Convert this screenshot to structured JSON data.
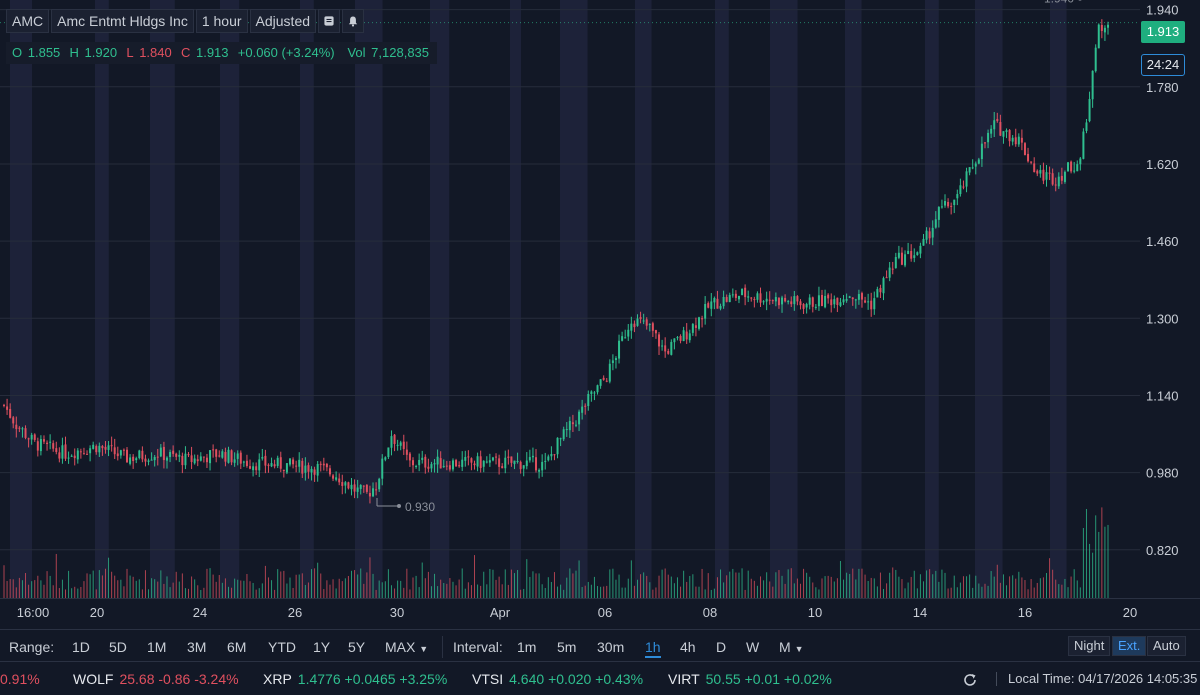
{
  "header": {
    "symbol": "AMC",
    "company": "Amc Entmt Hldgs Inc",
    "interval": "1 hour",
    "adjusted": "Adjusted",
    "notes_icon": "notes-icon",
    "alert_icon": "bell-icon"
  },
  "ohlc": {
    "o_label": "O",
    "o": "1.855",
    "h_label": "H",
    "h": "1.920",
    "l_label": "L",
    "l": "1.840",
    "c_label": "C",
    "c": "1.913",
    "change": "+0.060 (+3.24%)",
    "vol_label": "Vol",
    "vol": "7,128,835"
  },
  "tags": {
    "last_price": "1.913",
    "countdown": "24:24"
  },
  "colors": {
    "up": "#2fbf8f",
    "down": "#e0505f",
    "accent": "#2e8bd8",
    "background": "#121826",
    "session_band": "#1d2239"
  },
  "chart_data": {
    "type": "candlestick",
    "y_ticks": [
      "0.820",
      "0.980",
      "1.140",
      "1.300",
      "1.460",
      "1.620",
      "1.780",
      "1.940"
    ],
    "ylim": [
      0.72,
      1.96
    ],
    "x_ticks": [
      "16:00",
      "20",
      "24",
      "26",
      "30",
      "Apr",
      "06",
      "08",
      "10",
      "14",
      "16",
      "20"
    ],
    "high_marker": "1.940",
    "low_marker": "0.930",
    "path_anchors": [
      [
        0,
        1.12
      ],
      [
        4,
        1.08
      ],
      [
        10,
        1.04
      ],
      [
        20,
        1.02
      ],
      [
        30,
        1.035
      ],
      [
        40,
        1.01
      ],
      [
        50,
        1.02
      ],
      [
        60,
        1.005
      ],
      [
        70,
        1.02
      ],
      [
        80,
        1.0
      ],
      [
        92,
        0.995
      ],
      [
        102,
        0.99
      ],
      [
        108,
        0.975
      ],
      [
        114,
        0.945
      ],
      [
        118,
        0.935
      ],
      [
        121,
        0.955
      ],
      [
        126,
        1.06
      ],
      [
        132,
        1.0
      ],
      [
        142,
        1.0
      ],
      [
        152,
        1.0
      ],
      [
        162,
        1.0
      ],
      [
        172,
        1.0
      ],
      [
        176,
        0.995
      ],
      [
        180,
        1.04
      ],
      [
        186,
        1.09
      ],
      [
        190,
        1.13
      ],
      [
        196,
        1.18
      ],
      [
        200,
        1.24
      ],
      [
        204,
        1.3
      ],
      [
        210,
        1.28
      ],
      [
        215,
        1.23
      ],
      [
        222,
        1.27
      ],
      [
        230,
        1.33
      ],
      [
        240,
        1.35
      ],
      [
        250,
        1.34
      ],
      [
        260,
        1.33
      ],
      [
        270,
        1.34
      ],
      [
        275,
        1.35
      ],
      [
        282,
        1.33
      ],
      [
        290,
        1.42
      ],
      [
        298,
        1.44
      ],
      [
        304,
        1.52
      ],
      [
        310,
        1.55
      ],
      [
        316,
        1.63
      ],
      [
        322,
        1.7
      ],
      [
        330,
        1.67
      ],
      [
        336,
        1.6
      ],
      [
        342,
        1.59
      ],
      [
        346,
        1.61
      ],
      [
        350,
        1.63
      ],
      [
        356,
        1.9
      ],
      [
        359,
        1.913
      ]
    ],
    "series_count_candles": 360
  },
  "range": {
    "label": "Range:",
    "options": [
      "1D",
      "5D",
      "1M",
      "3M",
      "6M",
      "YTD",
      "1Y",
      "5Y",
      "MAX"
    ]
  },
  "interval": {
    "label": "Interval:",
    "options": [
      "1m",
      "5m",
      "30m",
      "1h",
      "4h",
      "D",
      "W",
      "M"
    ],
    "selected": "1h"
  },
  "modes": {
    "night": "Night",
    "ext": "Ext.",
    "auto": "Auto"
  },
  "tickers": [
    {
      "sym": "",
      "price": "",
      "chg": "0.91%",
      "dir": "dn"
    },
    {
      "sym": "WOLF",
      "price": "25.68",
      "chg": "-0.86 -3.24%",
      "dir": "dn"
    },
    {
      "sym": "XRP",
      "price": "1.4776",
      "chg": "+0.0465 +3.25%",
      "dir": "up"
    },
    {
      "sym": "VTSI",
      "price": "4.640",
      "chg": "+0.020 +0.43%",
      "dir": "up"
    },
    {
      "sym": "VIRT",
      "price": "50.55",
      "chg": "+0.01 +0.02%",
      "dir": "up"
    }
  ],
  "local_time": "Local Time: 04/17/2026 14:05:35"
}
